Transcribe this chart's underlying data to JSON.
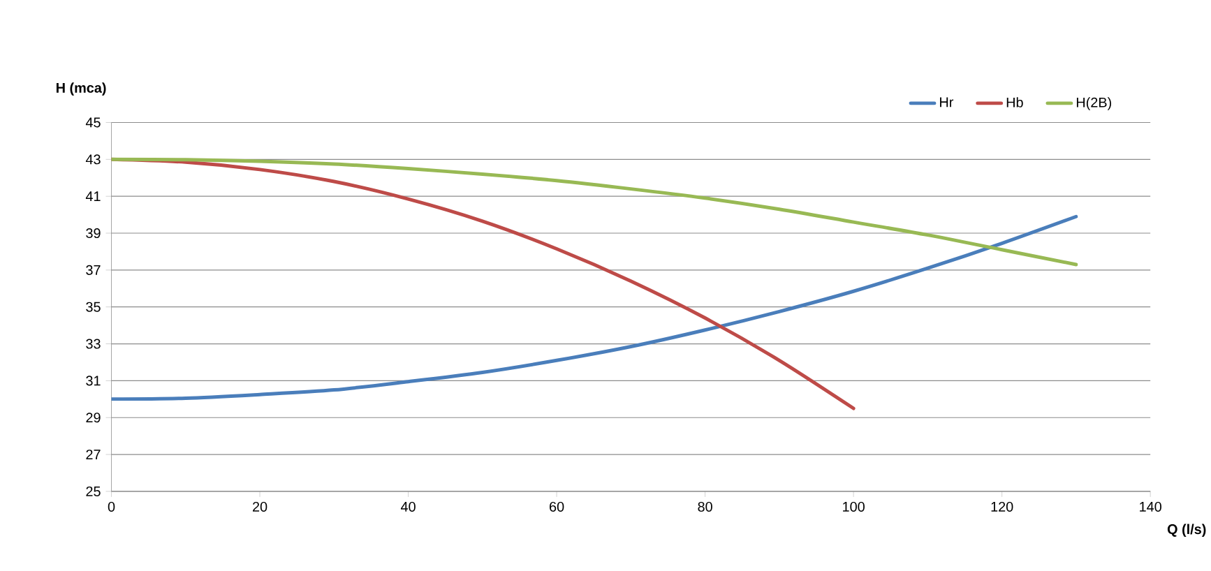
{
  "chart_data": {
    "type": "line",
    "x": [
      0,
      10,
      20,
      30,
      40,
      50,
      60,
      70,
      80,
      90,
      100,
      110,
      120,
      130
    ],
    "series": [
      {
        "name": "Hr",
        "color": "#4a7ebb",
        "values": [
          30,
          30.05,
          30.25,
          30.5,
          30.95,
          31.45,
          32.1,
          32.85,
          33.75,
          34.75,
          35.85,
          37.1,
          38.45,
          39.9
        ]
      },
      {
        "name": "Hb",
        "color": "#be4b48",
        "x": [
          0,
          10,
          20,
          30,
          40,
          50,
          60,
          70,
          80,
          90,
          100
        ],
        "values": [
          43,
          42.85,
          42.45,
          41.8,
          40.85,
          39.65,
          38.15,
          36.4,
          34.4,
          32.1,
          29.5
        ]
      },
      {
        "name": "H(2B)",
        "color": "#98b954",
        "values": [
          43,
          42.98,
          42.9,
          42.75,
          42.5,
          42.2,
          41.85,
          41.4,
          40.9,
          40.3,
          39.6,
          38.9,
          38.1,
          37.3
        ]
      }
    ],
    "xlabel": "Q (l/s)",
    "ylabel": "H (mca)",
    "xlim": [
      0,
      140
    ],
    "ylim": [
      25,
      45
    ],
    "xticks": [
      0,
      20,
      40,
      60,
      80,
      100,
      120,
      140
    ],
    "yticks": [
      25,
      27,
      29,
      31,
      33,
      35,
      37,
      39,
      41,
      43,
      45
    ],
    "grid": "y",
    "legend": "top right",
    "marker": "none",
    "line_style": "solid"
  }
}
